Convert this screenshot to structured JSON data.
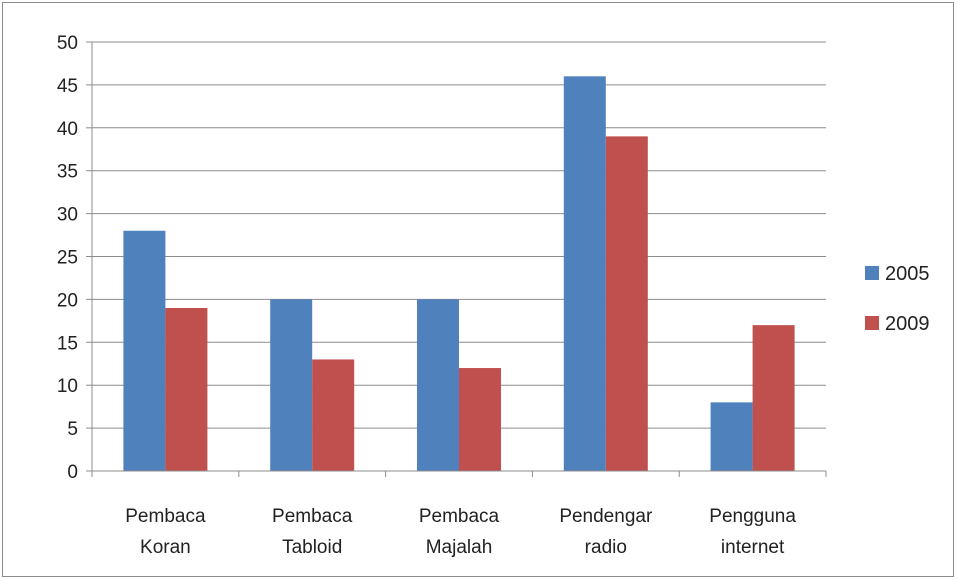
{
  "chart_data": {
    "type": "bar",
    "categories": [
      [
        "Pembaca",
        "Koran"
      ],
      [
        "Pembaca",
        "Tabloid"
      ],
      [
        "Pembaca",
        "Majalah"
      ],
      [
        "Pendengar",
        "radio"
      ],
      [
        "Pengguna",
        "internet"
      ]
    ],
    "series": [
      {
        "name": "2005",
        "color": "#4f81bd",
        "values": [
          28,
          20,
          20,
          46,
          8
        ]
      },
      {
        "name": "2009",
        "color": "#c0504d",
        "values": [
          19,
          13,
          12,
          39,
          17
        ]
      }
    ],
    "ylim": [
      0,
      50
    ],
    "yticks": [
      0,
      5,
      10,
      15,
      20,
      25,
      30,
      35,
      40,
      45,
      50
    ],
    "grid": true,
    "legend_position": "right"
  }
}
